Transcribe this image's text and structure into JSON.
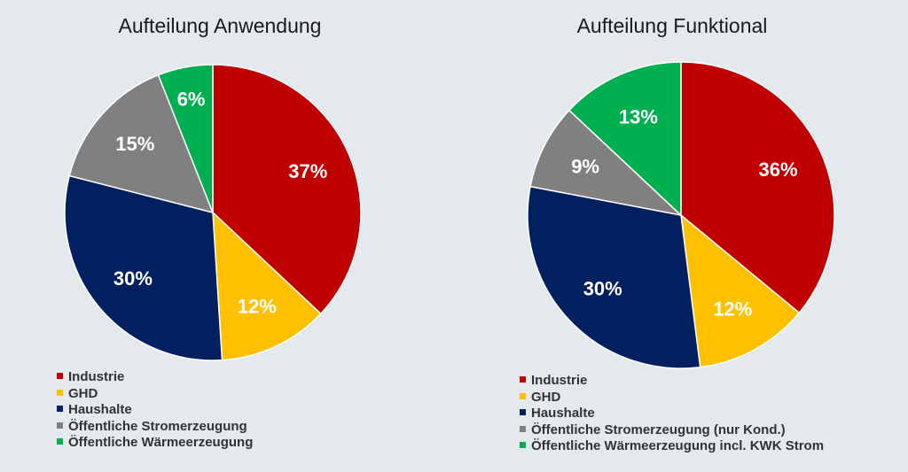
{
  "chart_data": [
    {
      "type": "pie",
      "title": "Aufteilung Anwendung",
      "categories": [
        "Industrie",
        "GHD",
        "Haushalte",
        "Öffentliche Stromerzeugung",
        "Öffentliche Wärmeerzeugung"
      ],
      "values": [
        37,
        12,
        30,
        15,
        6
      ],
      "labels": [
        "37%",
        "12%",
        "30%",
        "15%",
        "6%"
      ],
      "colors": [
        "#c00000",
        "#ffc000",
        "#002060",
        "#808080",
        "#00b050"
      ],
      "legend_position": "bottom-left"
    },
    {
      "type": "pie",
      "title": "Aufteilung Funktional",
      "categories": [
        "Industrie",
        "GHD",
        "Haushalte",
        "Öffentliche Stromerzeugung (nur Kond.)",
        "Öffentliche Wärmeerzeugung incl. KWK Strom"
      ],
      "values": [
        36,
        12,
        30,
        9,
        13
      ],
      "labels": [
        "36%",
        "12%",
        "30%",
        "9%",
        "13%"
      ],
      "colors": [
        "#c00000",
        "#ffc000",
        "#002060",
        "#808080",
        "#00b050"
      ],
      "legend_position": "bottom-left"
    }
  ]
}
